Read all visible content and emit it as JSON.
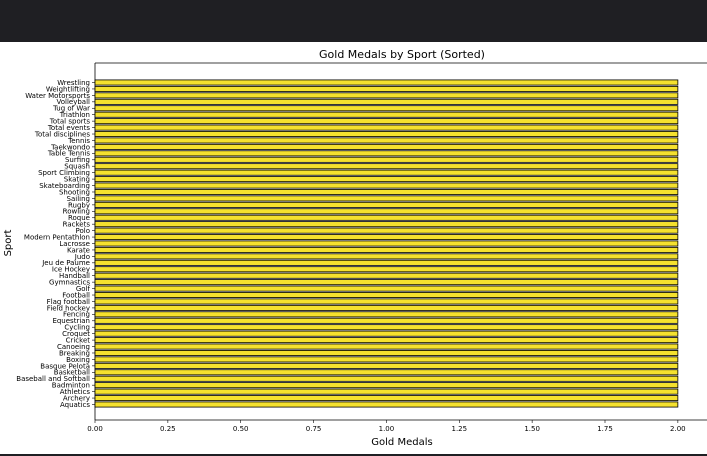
{
  "chart_data": {
    "type": "bar",
    "orientation": "horizontal",
    "title": "Gold Medals by Sport (Sorted)",
    "xlabel": "Gold Medals",
    "ylabel": "Sport",
    "xlim": [
      0,
      2.1
    ],
    "xticks": [
      0.0,
      0.25,
      0.5,
      0.75,
      1.0,
      1.25,
      1.5,
      1.75,
      2.0
    ],
    "xtick_labels": [
      "0.00",
      "0.25",
      "0.50",
      "0.75",
      "1.00",
      "1.25",
      "1.50",
      "1.75",
      "2.00"
    ],
    "bar_color": "#f5e12e",
    "bar_edge_color": "#000000",
    "grid": false,
    "categories": [
      "Wrestling",
      "Weightlifting",
      "Water Motorsports",
      "Volleyball",
      "Tug of War",
      "Triathlon",
      "Total sports",
      "Total events",
      "Total disciplines",
      "Tennis",
      "Taekwondo",
      "Table Tennis",
      "Surfing",
      "Squash",
      "Sport Climbing",
      "Skating",
      "Skateboarding",
      "Shooting",
      "Sailing",
      "Rugby",
      "Rowling",
      "Roque",
      "Rackets",
      "Polo",
      "Modern Pentathlon",
      "Lacrosse",
      "Karate",
      "Judo",
      "Jeu de Paume",
      "Ice Hockey",
      "Handball",
      "Gymnastics",
      "Golf",
      "Football",
      "Flag football",
      "Field hockey",
      "Fencing",
      "Equestrian",
      "Cycling",
      "Croquet",
      "Cricket",
      "Canoeing",
      "Breaking",
      "Boxing",
      "Basque Pelota",
      "Basketball",
      "Baseball and Softball",
      "Badminton",
      "Athletics",
      "Archery",
      "Aquatics"
    ],
    "values": [
      2,
      2,
      2,
      2,
      2,
      2,
      2,
      2,
      2,
      2,
      2,
      2,
      2,
      2,
      2,
      2,
      2,
      2,
      2,
      2,
      2,
      2,
      2,
      2,
      2,
      2,
      2,
      2,
      2,
      2,
      2,
      2,
      2,
      2,
      2,
      2,
      2,
      2,
      2,
      2,
      2,
      2,
      2,
      2,
      2,
      2,
      2,
      2,
      2,
      2,
      2
    ]
  }
}
